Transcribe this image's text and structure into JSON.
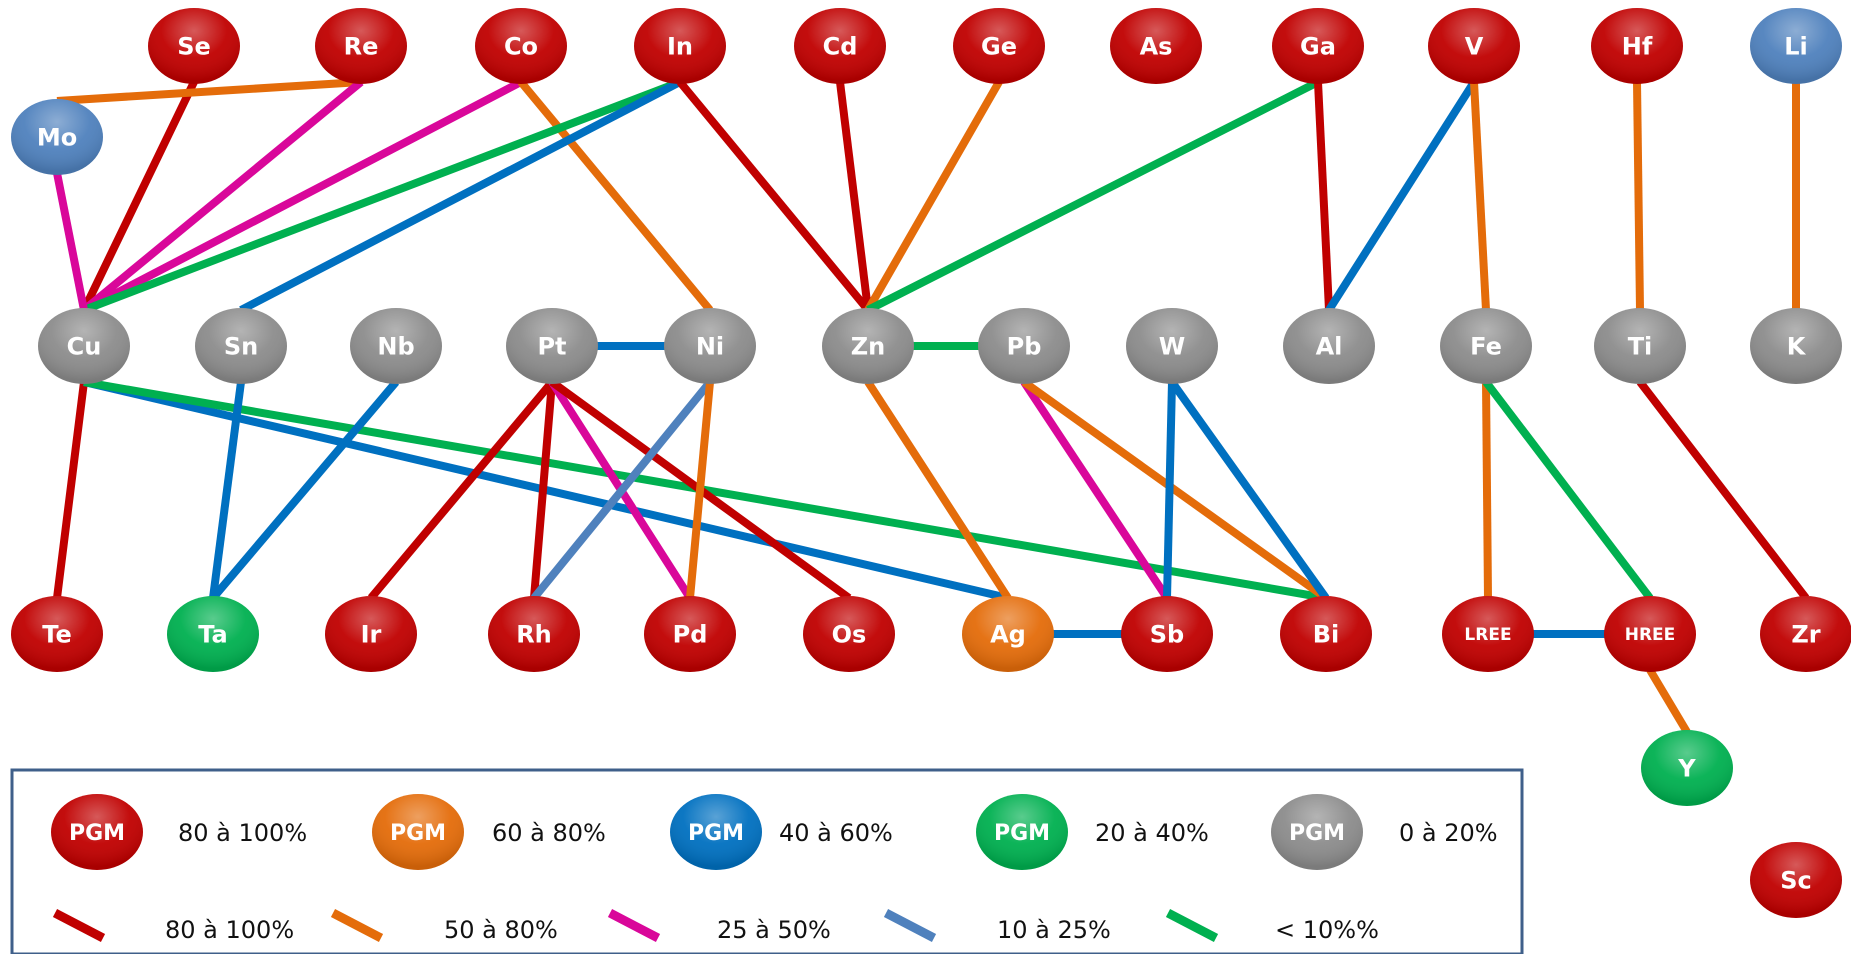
{
  "colors": {
    "node_red": "#c00000",
    "node_orange": "#e46c0a",
    "node_blue": "#4f81bd",
    "node_blue_strong": "#0070c0",
    "node_green": "#00b050",
    "node_grey": "#8c8c8c",
    "edge_80_100": "#c00000",
    "edge_50_80": "#e46c0a",
    "edge_25_50": "#d9079a",
    "edge_10_25": "#4f81bd",
    "edge_below_10": "#00b050",
    "edge_dark_blue": "#0070c0",
    "legend_border": "#3f5f8a"
  },
  "nodes": [
    {
      "id": "Se",
      "label": "Se",
      "color": "node_red"
    },
    {
      "id": "Re",
      "label": "Re",
      "color": "node_red"
    },
    {
      "id": "Co",
      "label": "Co",
      "color": "node_red"
    },
    {
      "id": "In",
      "label": "In",
      "color": "node_red"
    },
    {
      "id": "Cd",
      "label": "Cd",
      "color": "node_red"
    },
    {
      "id": "Ge",
      "label": "Ge",
      "color": "node_red"
    },
    {
      "id": "As",
      "label": "As",
      "color": "node_red"
    },
    {
      "id": "Ga",
      "label": "Ga",
      "color": "node_red"
    },
    {
      "id": "V",
      "label": "V",
      "color": "node_red"
    },
    {
      "id": "Hf",
      "label": "Hf",
      "color": "node_red"
    },
    {
      "id": "Li",
      "label": "Li",
      "color": "node_blue"
    },
    {
      "id": "Mo",
      "label": "Mo",
      "color": "node_blue"
    },
    {
      "id": "Cu",
      "label": "Cu",
      "color": "node_grey"
    },
    {
      "id": "Sn",
      "label": "Sn",
      "color": "node_grey"
    },
    {
      "id": "Nb",
      "label": "Nb",
      "color": "node_grey"
    },
    {
      "id": "Pt",
      "label": "Pt",
      "color": "node_grey"
    },
    {
      "id": "Ni",
      "label": "Ni",
      "color": "node_grey"
    },
    {
      "id": "Zn",
      "label": "Zn",
      "color": "node_grey"
    },
    {
      "id": "Pb",
      "label": "Pb",
      "color": "node_grey"
    },
    {
      "id": "W",
      "label": "W",
      "color": "node_grey"
    },
    {
      "id": "Al",
      "label": "Al",
      "color": "node_grey"
    },
    {
      "id": "Fe",
      "label": "Fe",
      "color": "node_grey"
    },
    {
      "id": "Ti",
      "label": "Ti",
      "color": "node_grey"
    },
    {
      "id": "K",
      "label": "K",
      "color": "node_grey"
    },
    {
      "id": "Te",
      "label": "Te",
      "color": "node_red"
    },
    {
      "id": "Ta",
      "label": "Ta",
      "color": "node_green"
    },
    {
      "id": "Ir",
      "label": "Ir",
      "color": "node_red"
    },
    {
      "id": "Rh",
      "label": "Rh",
      "color": "node_red"
    },
    {
      "id": "Pd",
      "label": "Pd",
      "color": "node_red"
    },
    {
      "id": "Os",
      "label": "Os",
      "color": "node_red"
    },
    {
      "id": "Ag",
      "label": "Ag",
      "color": "node_orange"
    },
    {
      "id": "Sb",
      "label": "Sb",
      "color": "node_red"
    },
    {
      "id": "Bi",
      "label": "Bi",
      "color": "node_red"
    },
    {
      "id": "LREE",
      "label": "LREE",
      "color": "node_red"
    },
    {
      "id": "HREE",
      "label": "HREE",
      "color": "node_red"
    },
    {
      "id": "Zr",
      "label": "Zr",
      "color": "node_red"
    },
    {
      "id": "Y",
      "label": "Y",
      "color": "node_green"
    },
    {
      "id": "Sc",
      "label": "Sc",
      "color": "node_red"
    }
  ],
  "edges": [
    {
      "from": "Se",
      "to": "Cu",
      "color": "edge_80_100"
    },
    {
      "from": "Mo",
      "to": "Re",
      "color": "edge_50_80"
    },
    {
      "from": "Re",
      "to": "Cu",
      "color": "edge_25_50"
    },
    {
      "from": "Co",
      "to": "Cu",
      "color": "edge_25_50"
    },
    {
      "from": "Co",
      "to": "Ni",
      "color": "edge_50_80"
    },
    {
      "from": "In",
      "to": "Cu",
      "color": "edge_below_10"
    },
    {
      "from": "In",
      "to": "Sn",
      "color": "edge_dark_blue"
    },
    {
      "from": "In",
      "to": "Zn",
      "color": "edge_80_100"
    },
    {
      "from": "Cd",
      "to": "Zn",
      "color": "edge_80_100"
    },
    {
      "from": "Ge",
      "to": "Zn",
      "color": "edge_50_80"
    },
    {
      "from": "Ga",
      "to": "Zn",
      "color": "edge_below_10"
    },
    {
      "from": "Ga",
      "to": "Al",
      "color": "edge_80_100"
    },
    {
      "from": "V",
      "to": "Al",
      "color": "edge_dark_blue"
    },
    {
      "from": "V",
      "to": "Fe",
      "color": "edge_50_80"
    },
    {
      "from": "Hf",
      "to": "Ti",
      "color": "edge_50_80"
    },
    {
      "from": "Li",
      "to": "K",
      "color": "edge_50_80"
    },
    {
      "from": "Mo",
      "to": "Cu",
      "color": "edge_25_50"
    },
    {
      "from": "Pt",
      "to": "Ni",
      "color": "edge_dark_blue"
    },
    {
      "from": "Zn",
      "to": "Pb",
      "color": "edge_below_10"
    },
    {
      "from": "Cu",
      "to": "Te",
      "color": "edge_80_100"
    },
    {
      "from": "Cu",
      "to": "Ag",
      "color": "edge_dark_blue"
    },
    {
      "from": "Cu",
      "to": "Bi",
      "color": "edge_below_10"
    },
    {
      "from": "Sn",
      "to": "Ta",
      "color": "edge_dark_blue"
    },
    {
      "from": "Nb",
      "to": "Ta",
      "color": "edge_dark_blue"
    },
    {
      "from": "Pt",
      "to": "Ir",
      "color": "edge_80_100"
    },
    {
      "from": "Pt",
      "to": "Rh",
      "color": "edge_80_100"
    },
    {
      "from": "Pt",
      "to": "Pd",
      "color": "edge_25_50"
    },
    {
      "from": "Pt",
      "to": "Os",
      "color": "edge_80_100"
    },
    {
      "from": "Ni",
      "to": "Rh",
      "color": "edge_10_25"
    },
    {
      "from": "Ni",
      "to": "Pd",
      "color": "edge_50_80"
    },
    {
      "from": "Zn",
      "to": "Ag",
      "color": "edge_50_80"
    },
    {
      "from": "Pb",
      "to": "Sb",
      "color": "edge_25_50"
    },
    {
      "from": "Pb",
      "to": "Bi",
      "color": "edge_50_80"
    },
    {
      "from": "W",
      "to": "Sb",
      "color": "edge_dark_blue"
    },
    {
      "from": "W",
      "to": "Bi",
      "color": "edge_dark_blue"
    },
    {
      "from": "Ag",
      "to": "Sb",
      "color": "edge_dark_blue"
    },
    {
      "from": "Fe",
      "to": "LREE",
      "color": "edge_50_80"
    },
    {
      "from": "Fe",
      "to": "HREE",
      "color": "edge_below_10"
    },
    {
      "from": "LREE",
      "to": "HREE",
      "color": "edge_dark_blue"
    },
    {
      "from": "Ti",
      "to": "Zr",
      "color": "edge_80_100"
    },
    {
      "from": "HREE",
      "to": "Y",
      "color": "edge_50_80"
    }
  ],
  "legend": {
    "node_items": [
      {
        "label": "PGM",
        "range": "80 à 100%",
        "color": "node_red"
      },
      {
        "label": "PGM",
        "range": "60 à 80%",
        "color": "node_orange"
      },
      {
        "label": "PGM",
        "range": "40 à 60%",
        "color": "node_blue_strong"
      },
      {
        "label": "PGM",
        "range": "20 à 40%",
        "color": "node_green"
      },
      {
        "label": "PGM",
        "range": "0 à 20%",
        "color": "node_grey"
      }
    ],
    "edge_items": [
      {
        "range": "80 à 100%",
        "color": "edge_80_100"
      },
      {
        "range": "50 à 80%",
        "color": "edge_50_80"
      },
      {
        "range": "25 à 50%",
        "color": "edge_25_50"
      },
      {
        "range": "10 à 25%",
        "color": "edge_10_25"
      },
      {
        "range": "< 10%%",
        "color": "edge_below_10"
      }
    ]
  }
}
